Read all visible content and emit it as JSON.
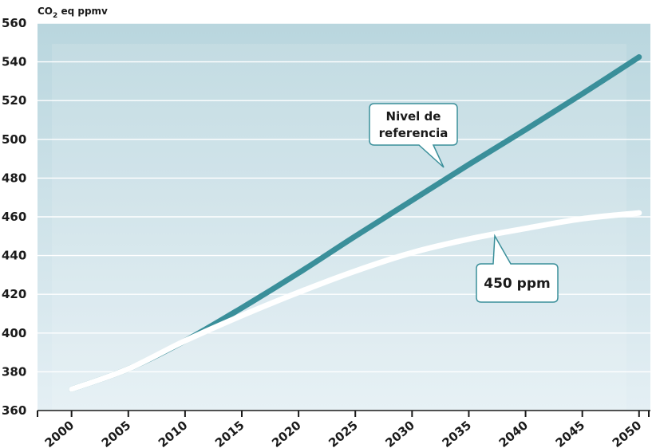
{
  "chart_data": {
    "type": "line",
    "ylabel_main": "CO",
    "ylabel_sub": "2",
    "ylabel_rest": " eq ppmv",
    "ylim": [
      360,
      560
    ],
    "yticks": [
      "560",
      "540",
      "520",
      "500",
      "480",
      "460",
      "440",
      "420",
      "400",
      "380",
      "360"
    ],
    "ytick_values": [
      560,
      540,
      520,
      500,
      480,
      460,
      440,
      420,
      400,
      380,
      360
    ],
    "xlim": [
      1997,
      2051
    ],
    "xticks": [
      "2000",
      "2005",
      "2010",
      "2015",
      "2020",
      "2025",
      "2030",
      "2035",
      "2040",
      "2045",
      "2050"
    ],
    "xtick_values": [
      2000,
      2005,
      2010,
      2015,
      2020,
      2025,
      2030,
      2035,
      2040,
      2045,
      2050
    ],
    "grid": true,
    "series": [
      {
        "name": "Nivel de referencia",
        "color": "#3a8f9a",
        "x": [
          2000,
          2005,
          2010,
          2015,
          2020,
          2025,
          2030,
          2035,
          2040,
          2045,
          2050
        ],
        "y": [
          371,
          381.5,
          396,
          413,
          431,
          450,
          468.5,
          487,
          505,
          523.5,
          542.5
        ]
      },
      {
        "name": "450 ppm",
        "color": "#ffffff",
        "x": [
          2000,
          2005,
          2010,
          2015,
          2020,
          2025,
          2030,
          2035,
          2040,
          2045,
          2050
        ],
        "y": [
          371,
          381.5,
          396,
          409,
          421,
          432,
          441.5,
          448.5,
          454,
          459,
          462
        ]
      }
    ],
    "annotations": [
      {
        "series": 0,
        "line1": "Nivel de",
        "line2": "referencia"
      },
      {
        "series": 1,
        "line1": "450 ppm"
      }
    ]
  },
  "colors": {
    "plot_bg_top": "#b9d6de",
    "plot_bg_bottom": "#e4eff4",
    "grid": "#ffffff",
    "callout_border": "#3a8f9a",
    "callout_fill": "#ffffff"
  }
}
